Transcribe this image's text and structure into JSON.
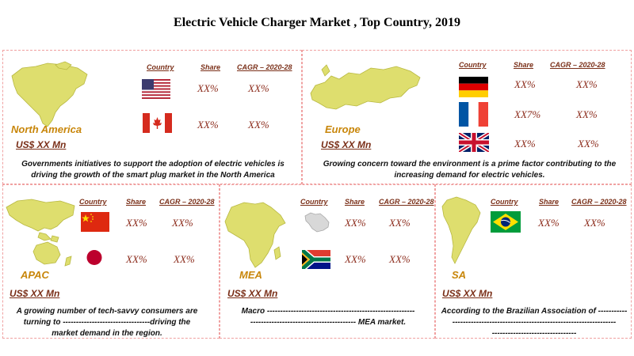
{
  "title": "Electric Vehicle Charger Market , Top Country, 2019",
  "columns": {
    "country": "Country",
    "share": "Share",
    "cagr": "CAGR – 2020-28"
  },
  "panels": {
    "north_america": {
      "name": "North America",
      "usd": "US$ XX Mn",
      "rows": [
        {
          "flag": "usa-flag-icon",
          "share": "XX%",
          "cagr": "XX%"
        },
        {
          "flag": "canada-flag-icon",
          "share": "XX%",
          "cagr": "XX%"
        }
      ],
      "description": "Governments initiatives to support the adoption of electric vehicles is driving the growth of the smart plug market in the North America"
    },
    "europe": {
      "name": "Europe",
      "usd": "US$ XX Mn",
      "rows": [
        {
          "flag": "germany-flag-icon",
          "share": "XX%",
          "cagr": "XX%"
        },
        {
          "flag": "france-flag-icon",
          "share": "XX7%",
          "cagr": "XX%"
        },
        {
          "flag": "uk-flag-icon",
          "share": "XX%",
          "cagr": "XX%"
        }
      ],
      "description": "Growing concern toward the environment is a prime factor contributing to the increasing demand for electric vehicles."
    },
    "apac": {
      "name": "APAC",
      "usd": "US$ XX Mn",
      "rows": [
        {
          "flag": "china-flag-icon",
          "share": "XX%",
          "cagr": "XX%"
        },
        {
          "flag": "japan-flag-icon",
          "share": "XX%",
          "cagr": "XX%"
        }
      ],
      "description_lines": [
        "A growing number of tech-savvy consumers are",
        "turning to ---------------------------------driving the",
        "market demand in the region."
      ]
    },
    "mea": {
      "name": "MEA",
      "usd": "US$ XX Mn",
      "rows": [
        {
          "flag": "saudi-arabia-map-icon",
          "share": "XX%",
          "cagr": "XX%"
        },
        {
          "flag": "south-africa-flag-icon",
          "share": "XX%",
          "cagr": "XX%"
        }
      ],
      "description_lines": [
        "Macro --------------------------------------------------------",
        "---------------------------------------- MEA market."
      ]
    },
    "sa": {
      "name": "SA",
      "usd": "US$ XX Mn",
      "rows": [
        {
          "flag": "brazil-flag-icon",
          "share": "XX%",
          "cagr": "XX%"
        }
      ],
      "description_lines": [
        "According to the Brazilian Association of -----------",
        "--------------------------------------------------------------",
        "--------------------------------"
      ]
    }
  },
  "colors": {
    "map_fill": "#dede6e",
    "region_label": "#c8860a",
    "value_text": "#8b2a1a",
    "border": "#f0a0a0"
  }
}
